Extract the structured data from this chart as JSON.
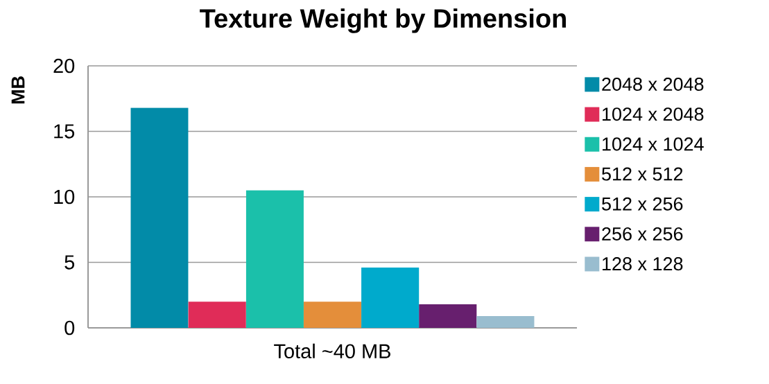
{
  "chart_data": {
    "type": "bar",
    "title": "Texture Weight by Dimension",
    "ylabel": "MB",
    "categories": [
      "Total ~40 MB"
    ],
    "series": [
      {
        "name": "2048 x 2048",
        "color": "#028ba8",
        "values": [
          16.8
        ]
      },
      {
        "name": "1024 x 2048",
        "color": "#e02c58",
        "values": [
          2
        ]
      },
      {
        "name": "1024 x 1024",
        "color": "#1bc0aa",
        "values": [
          10.5
        ]
      },
      {
        "name": "512 x 512",
        "color": "#e48e3a",
        "values": [
          2
        ]
      },
      {
        "name": "512 x 256",
        "color": "#00aacc",
        "values": [
          4.6
        ]
      },
      {
        "name": "256 x 256",
        "color": "#671f6e",
        "values": [
          1.8
        ]
      },
      {
        "name": "128 x 128",
        "color": "#99bdcf",
        "values": [
          0.9
        ]
      }
    ],
    "ylim": [
      0,
      20
    ],
    "yticks": [
      0,
      5,
      10,
      15,
      20
    ],
    "grid": "y",
    "legend": "right"
  }
}
